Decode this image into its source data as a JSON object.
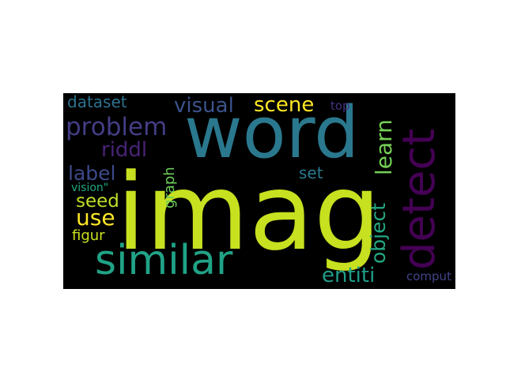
{
  "word_cloud": {
    "background": "#000000",
    "words": [
      {
        "text": "imag",
        "color": "#c7e020"
      },
      {
        "text": "word",
        "color": "#2a788e"
      },
      {
        "text": "detect",
        "color": "#440154"
      },
      {
        "text": "similar",
        "color": "#20a386"
      },
      {
        "text": "problem",
        "color": "#433e85"
      },
      {
        "text": "visual",
        "color": "#3b528b"
      },
      {
        "text": "scene",
        "color": "#fde725"
      },
      {
        "text": "learn",
        "color": "#75d054"
      },
      {
        "text": "riddl",
        "color": "#482374"
      },
      {
        "text": "dataset",
        "color": "#2c728e"
      },
      {
        "text": "label",
        "color": "#3e4989"
      },
      {
        "text": "seed",
        "color": "#bddf26"
      },
      {
        "text": "use",
        "color": "#fde725"
      },
      {
        "text": "object",
        "color": "#23a983"
      },
      {
        "text": "graph",
        "color": "#6ccd5a"
      },
      {
        "text": "set",
        "color": "#2a788e"
      },
      {
        "text": "vision\"",
        "color": "#22a884"
      },
      {
        "text": "figur",
        "color": "#cae11f"
      },
      {
        "text": "entiti",
        "color": "#1f9e89"
      },
      {
        "text": "comput",
        "color": "#414487"
      },
      {
        "text": "top",
        "color": "#46327e"
      }
    ]
  }
}
